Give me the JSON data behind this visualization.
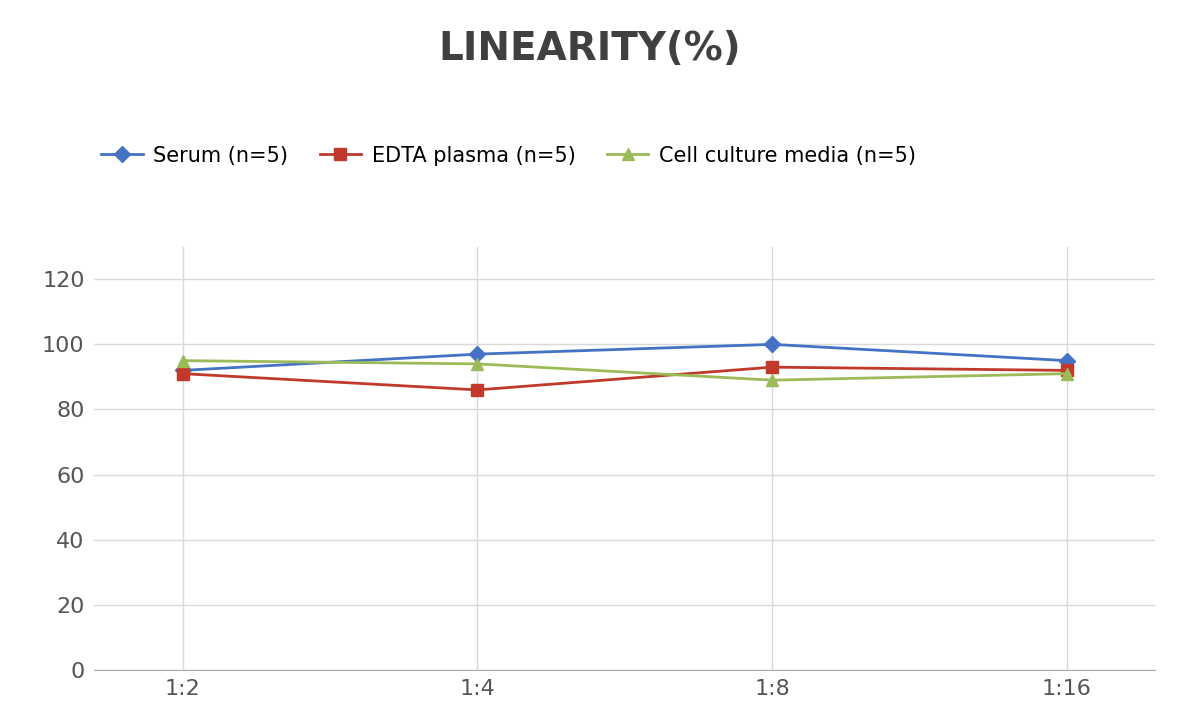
{
  "title": "LINEARITY(%)",
  "x_labels": [
    "1:2",
    "1:4",
    "1:8",
    "1:16"
  ],
  "x_positions": [
    0,
    1,
    2,
    3
  ],
  "series": [
    {
      "label": "Serum (n=5)",
      "values": [
        92,
        97,
        100,
        95
      ],
      "color": "#4472C4",
      "marker": "D",
      "marker_size": 8
    },
    {
      "label": "EDTA plasma (n=5)",
      "values": [
        91,
        86,
        93,
        92
      ],
      "color": "#C0392B",
      "marker": "s",
      "marker_size": 8
    },
    {
      "label": "Cell culture media (n=5)",
      "values": [
        95,
        94,
        89,
        91
      ],
      "color": "#9BBB59",
      "marker": "^",
      "marker_size": 8
    }
  ],
  "ylim": [
    0,
    130
  ],
  "yticks": [
    0,
    20,
    40,
    60,
    80,
    100,
    120
  ],
  "title_fontsize": 28,
  "tick_fontsize": 16,
  "legend_fontsize": 15,
  "background_color": "#ffffff",
  "grid_color": "#d9d9d9",
  "title_color": "#404040"
}
